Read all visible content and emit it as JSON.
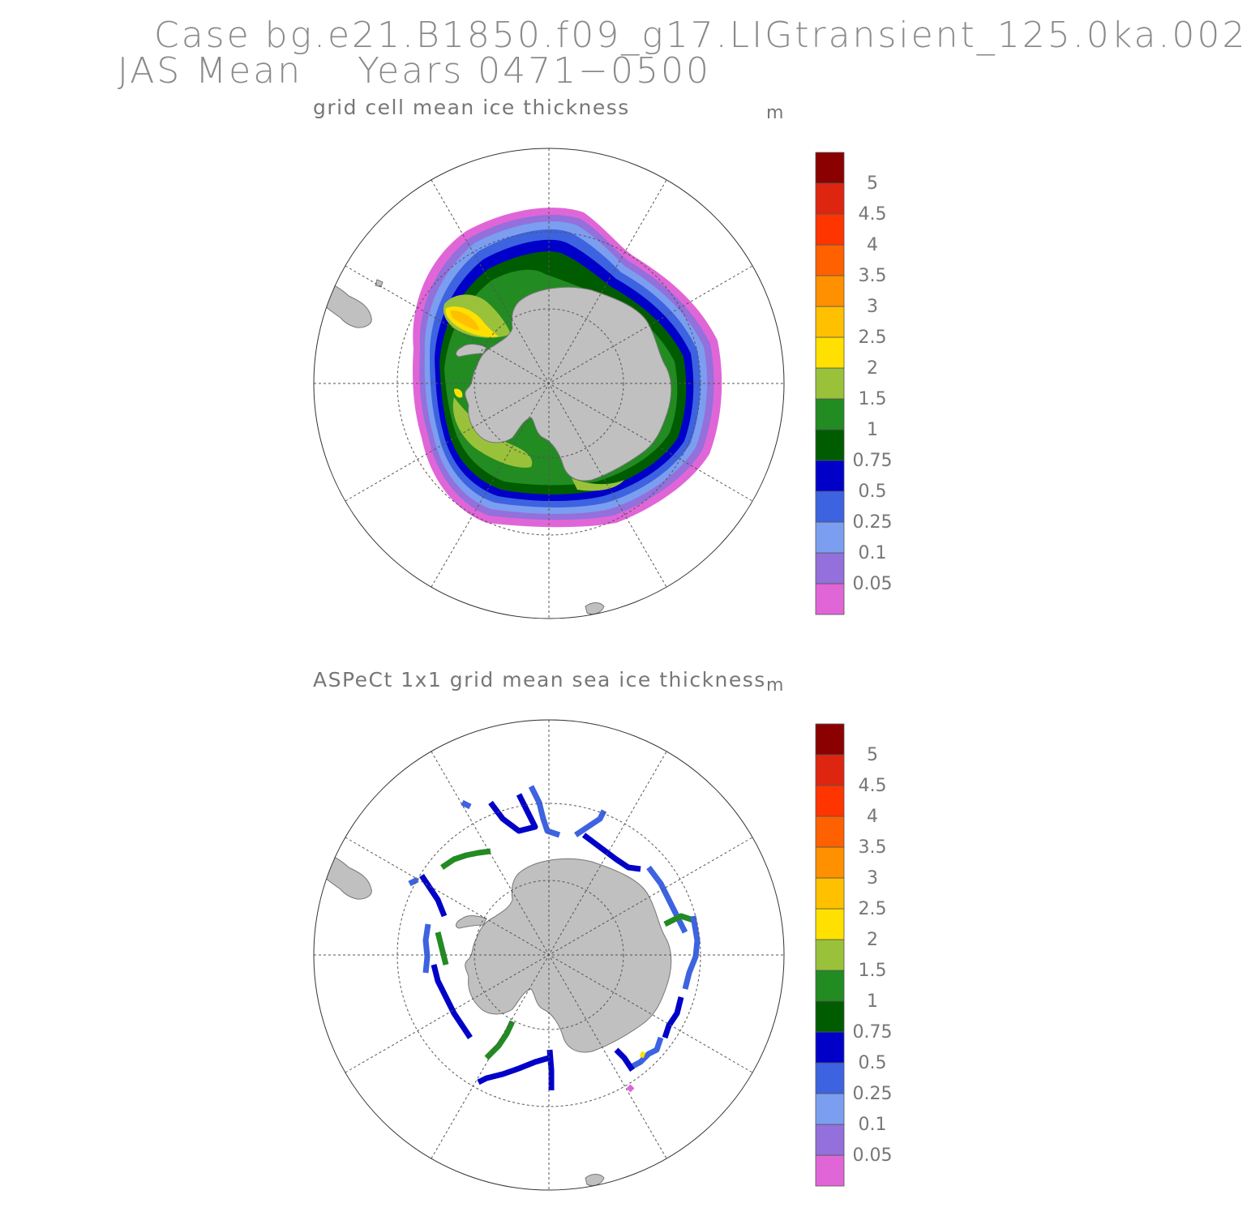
{
  "header": {
    "case_line": "Case bg.e21.B1850.f09_g17.LIGtransient_125.0ka.002",
    "period_line": "JAS Mean    Years 0471−0500"
  },
  "panels": [
    {
      "title": "grid cell mean ice thickness",
      "units": "m"
    },
    {
      "title": "ASPeCt 1x1 grid mean sea ice thickness",
      "units": "m"
    }
  ],
  "colorbar": {
    "colors": [
      "#e066d8",
      "#9370db",
      "#7b9ef0",
      "#3d63e0",
      "#0000c8",
      "#005c00",
      "#228b22",
      "#9ac13a",
      "#ffe000",
      "#ffc000",
      "#ff9000",
      "#ff6000",
      "#ff3500",
      "#dd2510",
      "#8b0000"
    ],
    "labels": [
      "0.05",
      "0.1",
      "0.25",
      "0.5",
      "0.75",
      "1",
      "1.5",
      "2",
      "2.5",
      "3",
      "3.5",
      "4",
      "4.5",
      "5"
    ]
  },
  "map": {
    "land_color": "#c0c0c0",
    "projection": "south-polar-stereographic"
  }
}
